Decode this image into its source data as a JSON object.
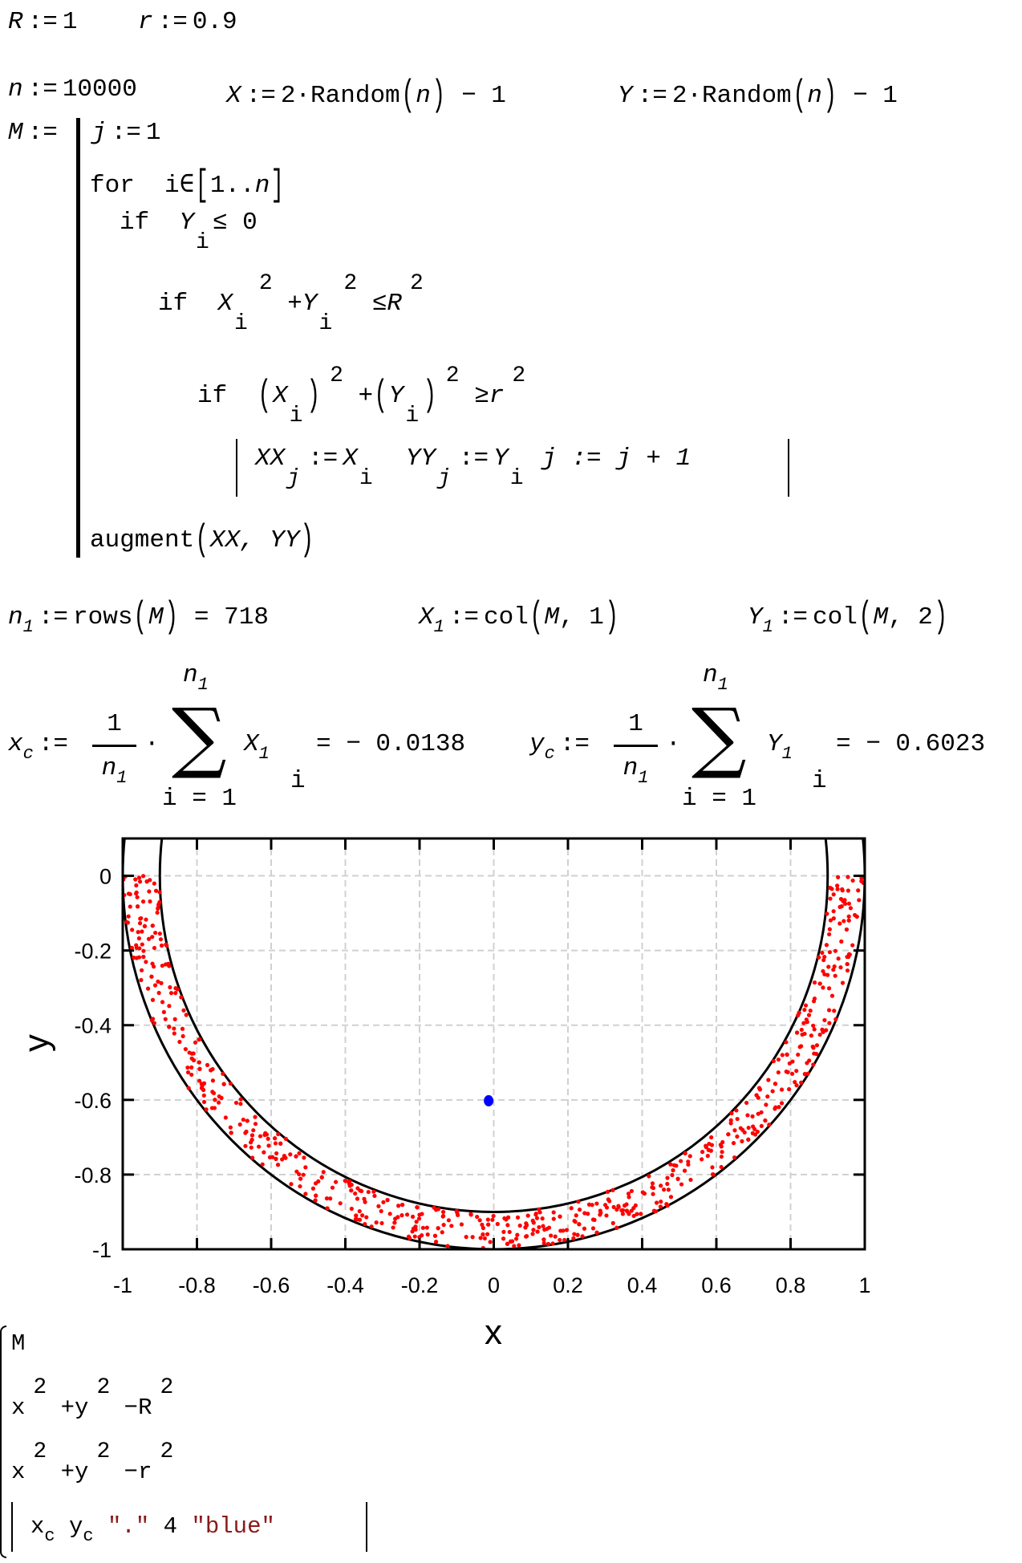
{
  "assign": ":=",
  "line1": {
    "R_var": "R",
    "R_val": "1",
    "r_var": "r",
    "r_val": "0.9"
  },
  "line2": {
    "n_var": "n",
    "n_val": "10000",
    "X_var": "X",
    "Y_var": "Y",
    "rand_prefix": "2·Random",
    "rand_arg": "n",
    "minus_one": "− 1"
  },
  "program": {
    "name": "M",
    "j_init": {
      "var": "j",
      "val": "1"
    },
    "for_kw": "for",
    "for_iter": "i∈",
    "range_from": "1..",
    "range_to": "n",
    "if_kw": "if",
    "cond1": {
      "var": "Y",
      "sub": "i",
      "rel": "≤ 0"
    },
    "cond2": {
      "x": "X",
      "sub": "i",
      "exp": "2",
      "plus": "+",
      "y": "Y",
      "rel": "≤",
      "R": "R"
    },
    "cond3": {
      "x": "X",
      "sub": "i",
      "exp": "2",
      "plus": "+",
      "y": "Y",
      "rel": "≥",
      "r": "r"
    },
    "body": {
      "xx": "XX",
      "j": "j",
      "x": "X",
      "i": "i",
      "yy": "YY",
      "y": "Y",
      "jinc": "j := j + 1"
    },
    "ret_fn": "augment",
    "ret_args": "XX, YY"
  },
  "line3": {
    "n1_var": "n",
    "sub1": "1",
    "rows_fn": "rows",
    "M": "M",
    "eq": "=",
    "rows_val": "718",
    "X1_var": "X",
    "Y1_var": "Y",
    "col_fn": "col",
    "col1": "1",
    "col2": "2"
  },
  "line4": {
    "xc_var": "x",
    "yc_var": "y",
    "c_sub": "c",
    "one": "1",
    "n": "n",
    "one_sub": "1",
    "sum_from": "i = 1",
    "dot": "·",
    "X": "X",
    "Y": "Y",
    "i": "i",
    "eq": "=",
    "xc_val": "− 0.0138",
    "yc_val": "− 0.6023"
  },
  "traces": {
    "t1": "M",
    "t2": {
      "x": "x",
      "y": "y",
      "R": "R",
      "exp": "2",
      "plus": "+",
      "minus": "−"
    },
    "t3": {
      "x": "x",
      "y": "y",
      "r": "r",
      "exp": "2",
      "plus": "+",
      "minus": "−"
    },
    "t4": {
      "xc": "x",
      "yc": "y",
      "sub": "c",
      "sym": "\".\"",
      "size": "4",
      "color": "\"blue\""
    }
  },
  "chart_data": {
    "type": "scatter",
    "xlabel": "x",
    "ylabel": "y",
    "xlim": [
      -1,
      1
    ],
    "ylim": [
      -1,
      0.1
    ],
    "grid": true,
    "xticks": [
      "-1",
      "-0.8",
      "-0.6",
      "-0.4",
      "-0.2",
      "0",
      "0.2",
      "0.4",
      "0.6",
      "0.8",
      "1"
    ],
    "yticks": [
      "0",
      "-0.2",
      "-0.4",
      "-0.6",
      "-0.8",
      "-1"
    ],
    "series": [
      {
        "name": "M",
        "kind": "points",
        "count": 718,
        "region": "lower half annulus 0.9 ≤ r ≤ 1",
        "color": "#ff0000"
      },
      {
        "name": "x^2+y^2-R^2",
        "kind": "implicit-circle",
        "radius": 1,
        "color": "#000000"
      },
      {
        "name": "x^2+y^2-r^2",
        "kind": "implicit-circle",
        "radius": 0.9,
        "color": "#000000"
      },
      {
        "name": "centroid",
        "kind": "point",
        "x": -0.0138,
        "y": -0.6023,
        "color": "#0000ff"
      }
    ]
  }
}
